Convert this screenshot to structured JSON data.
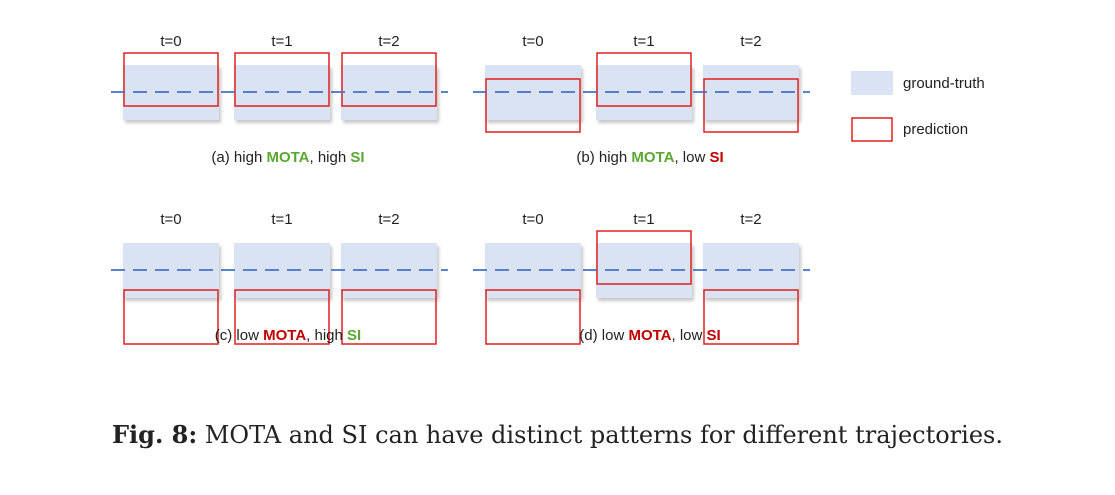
{
  "colors": {
    "ground_truth_fill": "#dae3f3",
    "prediction_stroke": "#e02020",
    "dashed_line": "#4472c4",
    "good": "#5aa832",
    "bad": "#c00000"
  },
  "legend": {
    "ground_truth": "ground-truth",
    "prediction": "prediction"
  },
  "time_labels": [
    "t=0",
    "t=1",
    "t=2"
  ],
  "panels": [
    {
      "id": "a",
      "caption": [
        {
          "text": "(a) high ",
          "style": "plain"
        },
        {
          "text": "MOTA",
          "style": "good"
        },
        {
          "text": ", high ",
          "style": "plain"
        },
        {
          "text": "SI",
          "style": "good"
        }
      ],
      "predictions": [
        "aligned-up",
        "aligned-up",
        "aligned-up"
      ]
    },
    {
      "id": "b",
      "caption": [
        {
          "text": "(b) high ",
          "style": "plain"
        },
        {
          "text": "MOTA",
          "style": "good"
        },
        {
          "text": ", low ",
          "style": "plain"
        },
        {
          "text": "SI",
          "style": "bad"
        }
      ],
      "predictions": [
        "aligned-down",
        "aligned-up",
        "aligned-down"
      ]
    },
    {
      "id": "c",
      "caption": [
        {
          "text": "(c) low ",
          "style": "plain"
        },
        {
          "text": "MOTA",
          "style": "bad"
        },
        {
          "text": ", high ",
          "style": "plain"
        },
        {
          "text": "SI",
          "style": "good"
        }
      ],
      "predictions": [
        "below",
        "below",
        "below"
      ]
    },
    {
      "id": "d",
      "caption": [
        {
          "text": "(d) low ",
          "style": "plain"
        },
        {
          "text": "MOTA",
          "style": "bad"
        },
        {
          "text": ", low ",
          "style": "plain"
        },
        {
          "text": "SI",
          "style": "bad"
        }
      ],
      "predictions": [
        "below",
        "aligned-up",
        "below"
      ]
    }
  ],
  "figure_caption": {
    "label": "Fig. 8:",
    "text": " MOTA and SI can have distinct patterns for different trajectories."
  }
}
